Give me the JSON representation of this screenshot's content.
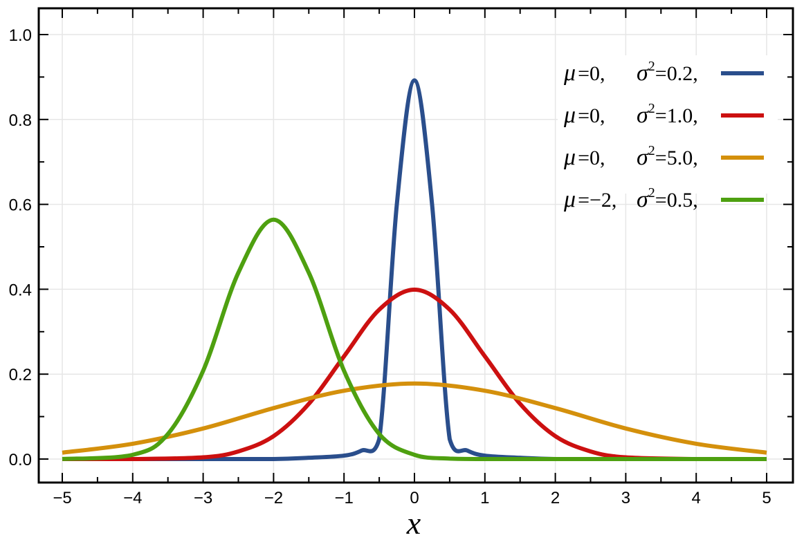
{
  "chart_data": {
    "type": "line",
    "title": "",
    "xlabel": "x",
    "ylabel": "",
    "xlim": [
      -5,
      5
    ],
    "ylim": [
      0,
      1.0
    ],
    "x_ticks": [
      "−5",
      "−4",
      "−3",
      "−2",
      "−1",
      "0",
      "1",
      "2",
      "3",
      "4",
      "5"
    ],
    "y_ticks": [
      "0.0",
      "0.2",
      "0.4",
      "0.6",
      "0.8",
      "1.0"
    ],
    "grid": true,
    "legend_position": "top-right",
    "series": [
      {
        "mu": 0,
        "sigma2": 0.2,
        "mu_text": "0,",
        "sigma2_text": "0.2,",
        "color": "#2a4e8c",
        "x": [
          -5,
          -4,
          -3,
          -2,
          -1.5,
          -1,
          -0.75,
          -0.5,
          -0.25,
          0,
          0.25,
          0.5,
          0.75,
          1,
          1.5,
          2,
          3,
          4,
          5
        ],
        "y": [
          0,
          0,
          0,
          0,
          0.003,
          0.008,
          0.02,
          0.047,
          0.6,
          0.892,
          0.6,
          0.047,
          0.02,
          0.008,
          0.003,
          0,
          0,
          0,
          0
        ]
      },
      {
        "mu": 0,
        "sigma2": 1.0,
        "mu_text": "0,",
        "sigma2_text": "1.0,",
        "color": "#cc1010",
        "x": [
          -5,
          -4,
          -3,
          -2.5,
          -2,
          -1.5,
          -1,
          -0.5,
          0,
          0.5,
          1,
          1.5,
          2,
          2.5,
          3,
          4,
          5
        ],
        "y": [
          0,
          0,
          0.004,
          0.018,
          0.054,
          0.13,
          0.242,
          0.352,
          0.399,
          0.352,
          0.242,
          0.13,
          0.054,
          0.018,
          0.004,
          0,
          0
        ]
      },
      {
        "mu": 0,
        "sigma2": 5.0,
        "mu_text": "0,",
        "sigma2_text": "5.0,",
        "color": "#d4900c",
        "x": [
          -5,
          -4,
          -3,
          -2,
          -1,
          0,
          1,
          2,
          3,
          4,
          5
        ],
        "y": [
          0.015,
          0.036,
          0.072,
          0.12,
          0.161,
          0.178,
          0.161,
          0.12,
          0.072,
          0.036,
          0.015
        ]
      },
      {
        "mu": -2,
        "sigma2": 0.5,
        "mu_text": "−2,",
        "sigma2_text": "0.5,",
        "color": "#4ea010",
        "x": [
          -5,
          -4,
          -3.5,
          -3,
          -2.5,
          -2,
          -1.5,
          -1,
          -0.5,
          0,
          0.5,
          1,
          2,
          3,
          4,
          5
        ],
        "y": [
          0,
          0.01,
          0.059,
          0.208,
          0.439,
          0.564,
          0.439,
          0.208,
          0.059,
          0.01,
          0.001,
          0,
          0,
          0,
          0,
          0
        ]
      }
    ]
  },
  "legend": {
    "mu_symbol": "μ",
    "sigma_symbol": "σ",
    "sup": "2",
    "eq": "="
  }
}
